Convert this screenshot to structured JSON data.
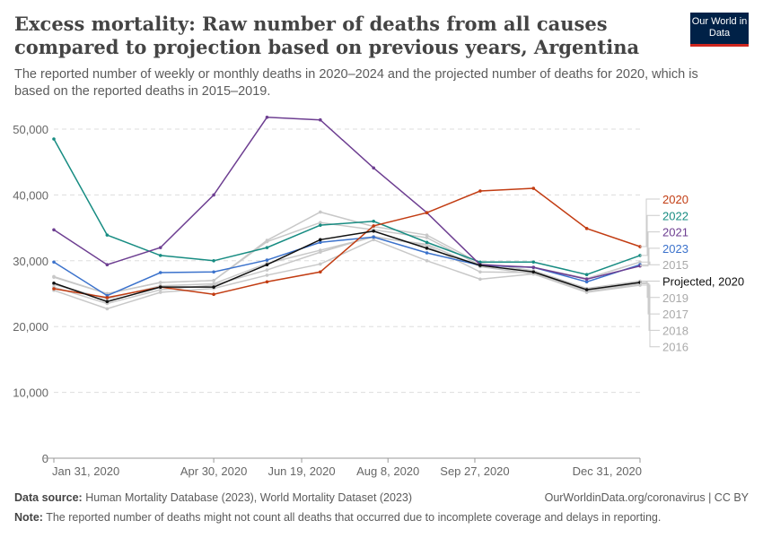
{
  "header": {
    "title": "Excess mortality: Raw number of deaths from all causes compared to projection based on previous years, Argentina",
    "subtitle": "The reported number of weekly or monthly deaths in 2020–2024 and the projected number of deaths for 2020, which is based on the reported deaths in 2015–2019.",
    "logo": "Our World in Data"
  },
  "footer": {
    "source_label": "Data source:",
    "source": "Human Mortality Database (2023), World Mortality Dataset (2023)",
    "license": "OurWorldinData.org/coronavirus | CC BY",
    "note_label": "Note:",
    "note": "The reported number of deaths might not count all deaths that occurred due to incomplete coverage and delays in reporting."
  },
  "chart_data": {
    "type": "line",
    "x": [
      "2020-01-31",
      "2020-02-29",
      "2020-03-31",
      "2020-04-30",
      "2020-05-31",
      "2020-06-30",
      "2020-07-31",
      "2020-08-31",
      "2020-09-30",
      "2020-10-31",
      "2020-11-30",
      "2020-12-31"
    ],
    "xticks": [
      {
        "i": 0,
        "label": "Jan 31, 2020"
      },
      {
        "i": 3,
        "label": "Apr 30, 2020"
      },
      {
        "i": 4.65,
        "label": "Jun 19, 2020"
      },
      {
        "i": 6.27,
        "label": "Aug 8, 2020"
      },
      {
        "i": 7.9,
        "label": "Sep 27, 2020"
      },
      {
        "i": 11,
        "label": "Dec 31, 2020"
      }
    ],
    "yticks": [
      0,
      10000,
      20000,
      30000,
      40000,
      50000
    ],
    "ytick_labels": [
      "0",
      "10,000",
      "20,000",
      "30,000",
      "40,000",
      "50,000"
    ],
    "ylim": [
      0,
      52000
    ],
    "grid": "horizontal dashed",
    "legend": "right, end-labels",
    "series": [
      {
        "name": "2016",
        "color": "#c8c8c8",
        "values": [
          25500,
          22700,
          25200,
          25800,
          27800,
          29500,
          33200,
          30000,
          27200,
          28000,
          25200,
          26300
        ]
      },
      {
        "name": "2018",
        "color": "#c8c8c8",
        "values": [
          26000,
          23500,
          25600,
          26300,
          28600,
          31300,
          33700,
          32300,
          28300,
          28200,
          25400,
          26500
        ]
      },
      {
        "name": "2017",
        "color": "#c8c8c8",
        "values": [
          26400,
          24200,
          26200,
          26500,
          29600,
          31600,
          33600,
          32500,
          29100,
          28000,
          25500,
          26600
        ]
      },
      {
        "name": "2019",
        "color": "#c8c8c8",
        "values": [
          27600,
          25000,
          26700,
          27000,
          33100,
          37400,
          35200,
          33900,
          29600,
          28500,
          25800,
          26900
        ]
      },
      {
        "name": "2015",
        "color": "#c8c8c8",
        "values": [
          27500,
          25000,
          26700,
          27000,
          32900,
          35800,
          34700,
          33500,
          29300,
          29000,
          27300,
          29800
        ]
      },
      {
        "name": "2023",
        "color": "#3b72cc",
        "values": [
          29800,
          24700,
          28200,
          28300,
          30100,
          32800,
          33600,
          31200,
          29300,
          29000,
          26800,
          29400
        ]
      },
      {
        "name": "2022",
        "color": "#178c82",
        "values": [
          48500,
          33900,
          30800,
          30000,
          32000,
          35400,
          36000,
          32800,
          29800,
          29800,
          27900,
          30800
        ]
      },
      {
        "name": "2021",
        "color": "#6d3e91",
        "values": [
          34700,
          29400,
          32000,
          40000,
          51800,
          51400,
          44100,
          37300,
          29400,
          29000,
          27200,
          29200
        ]
      },
      {
        "name": "2020",
        "color": "#c23c12",
        "values": [
          25750,
          24400,
          26000,
          24900,
          26800,
          28300,
          35300,
          37300,
          40600,
          41000,
          34900,
          32150
        ]
      },
      {
        "name": "Projected, 2020",
        "color": "#111111",
        "values": [
          26600,
          23800,
          26000,
          26000,
          29400,
          33200,
          34500,
          31900,
          29300,
          28300,
          25600,
          26700
        ]
      }
    ],
    "legend_order": [
      "2020",
      "2022",
      "2021",
      "2023",
      "2015",
      "Projected, 2020",
      "2019",
      "2017",
      "2018",
      "2016"
    ]
  }
}
